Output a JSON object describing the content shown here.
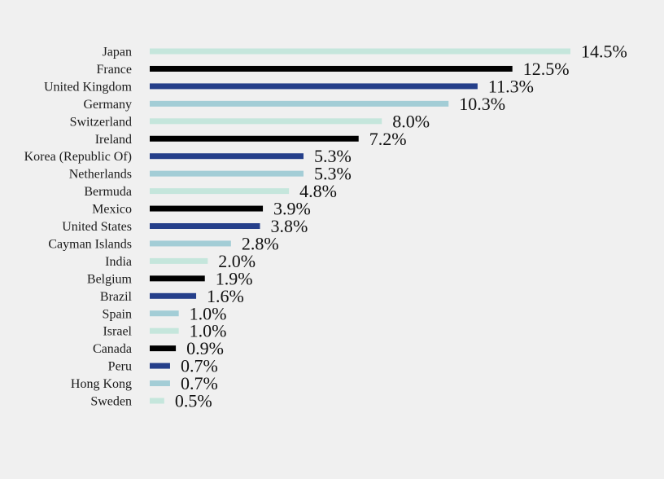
{
  "chart_data": {
    "type": "bar",
    "orientation": "horizontal",
    "categories": [
      "Japan",
      "France",
      "United Kingdom",
      "Germany",
      "Switzerland",
      "Ireland",
      "Korea (Republic Of)",
      "Netherlands",
      "Bermuda",
      "Mexico",
      "United States",
      "Cayman Islands",
      "India",
      "Belgium",
      "Brazil",
      "Spain",
      "Israel",
      "Canada",
      "Peru",
      "Hong Kong",
      "Sweden"
    ],
    "values": [
      14.5,
      12.5,
      11.3,
      10.3,
      8.0,
      7.2,
      5.3,
      5.3,
      4.8,
      3.9,
      3.8,
      2.8,
      2.0,
      1.9,
      1.6,
      1.0,
      1.0,
      0.9,
      0.7,
      0.7,
      0.5
    ],
    "value_labels": [
      "14.5%",
      "12.5%",
      "11.3%",
      "10.3%",
      "8.0%",
      "7.2%",
      "5.3%",
      "5.3%",
      "4.8%",
      "3.9%",
      "3.8%",
      "2.8%",
      "2.0%",
      "1.9%",
      "1.6%",
      "1.0%",
      "1.0%",
      "0.9%",
      "0.7%",
      "0.7%",
      "0.5%"
    ],
    "bar_colors": [
      "#c5e6dc",
      "#000000",
      "#253f8a",
      "#a3cdd6",
      "#c5e6dc",
      "#000000",
      "#253f8a",
      "#a3cdd6",
      "#c5e6dc",
      "#000000",
      "#253f8a",
      "#a3cdd6",
      "#c5e6dc",
      "#000000",
      "#253f8a",
      "#a3cdd6",
      "#c5e6dc",
      "#000000",
      "#253f8a",
      "#a3cdd6",
      "#c5e6dc"
    ],
    "title": "",
    "xlabel": "",
    "ylabel": "",
    "xlim": [
      0,
      14.5
    ],
    "grid": false,
    "legend": "none",
    "background": "#f0f0f0"
  }
}
